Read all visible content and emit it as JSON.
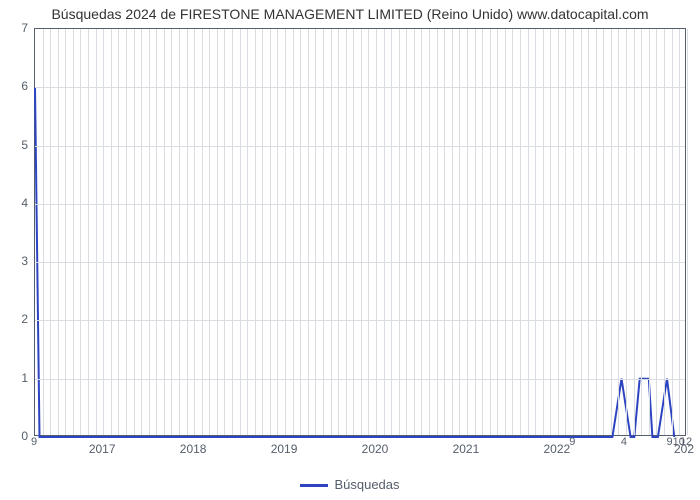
{
  "title": "Búsquedas 2024 de FIRESTONE MANAGEMENT LIMITED (Reino Unido) www.datocapital.com",
  "chart": {
    "type": "line",
    "background_color": "#ffffff",
    "border_color": "#555e6b",
    "grid_color": "#d9dde2",
    "title_fontsize": 14,
    "tick_fontsize": 12,
    "tick_color": "#555e6b",
    "line_color": "#2d44c2",
    "line_width": 2,
    "x_start": 2016.25,
    "x_end": 2023.42,
    "ylim": [
      0,
      7
    ],
    "ytick_step": 1,
    "y_ticks_upper": [
      0,
      1,
      2,
      3,
      4,
      5,
      6,
      7
    ],
    "y_ticks_lower": [
      "9",
      "",
      "",
      "",
      "",
      "4",
      "",
      "",
      "",
      "",
      "910",
      "12"
    ],
    "x_year_ticks": [
      2017,
      2018,
      2019,
      2020,
      2021,
      2022
    ],
    "x_extra_tick": "202",
    "data": {
      "x": [
        2016.25,
        2016.3,
        2016.34,
        2016.42,
        2022.2,
        2022.3,
        2022.4,
        2022.5,
        2022.6,
        2022.7,
        2022.8,
        2022.84,
        2022.9,
        2023.0,
        2023.04,
        2023.1,
        2023.2,
        2023.28
      ],
      "y": [
        6.0,
        0.0,
        0.0,
        0.0,
        0.0,
        0.0,
        0.0,
        0.0,
        0.0,
        1.0,
        0.0,
        0.0,
        1.0,
        1.0,
        0.0,
        0.0,
        1.0,
        0.0
      ]
    },
    "legend_label": "Búsquedas"
  }
}
